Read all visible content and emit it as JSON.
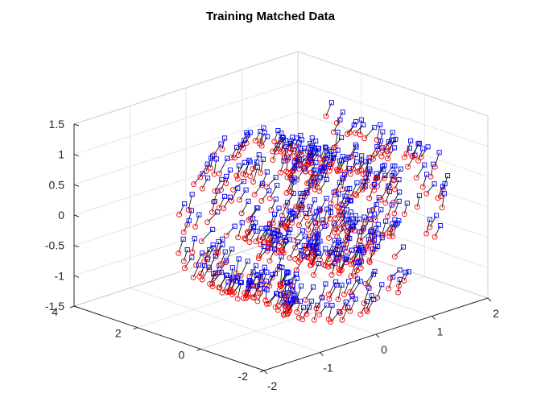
{
  "chart_data": {
    "type": "scatter",
    "projection": "3d",
    "title": "Training Matched Data",
    "xlabel": "",
    "ylabel": "",
    "zlabel": "",
    "xlim": [
      -2,
      2
    ],
    "ylim": [
      -2,
      4
    ],
    "zlim": [
      -1.5,
      1.5
    ],
    "x_ticks": [
      "-2",
      "-1",
      "0",
      "1",
      "2"
    ],
    "y_ticks": [
      "-2",
      "0",
      "2",
      "4"
    ],
    "z_ticks": [
      "-1.5",
      "-1",
      "-0.5",
      "0",
      "0.5",
      "1",
      "1.5"
    ],
    "grid": true,
    "series": [
      {
        "marker": "square",
        "color": "#0000ff"
      },
      {
        "marker": "circle",
        "color": "#ff0000"
      }
    ],
    "match_line_color": "#000000",
    "point_count": 500,
    "shape": "swiss-roll spiral"
  }
}
